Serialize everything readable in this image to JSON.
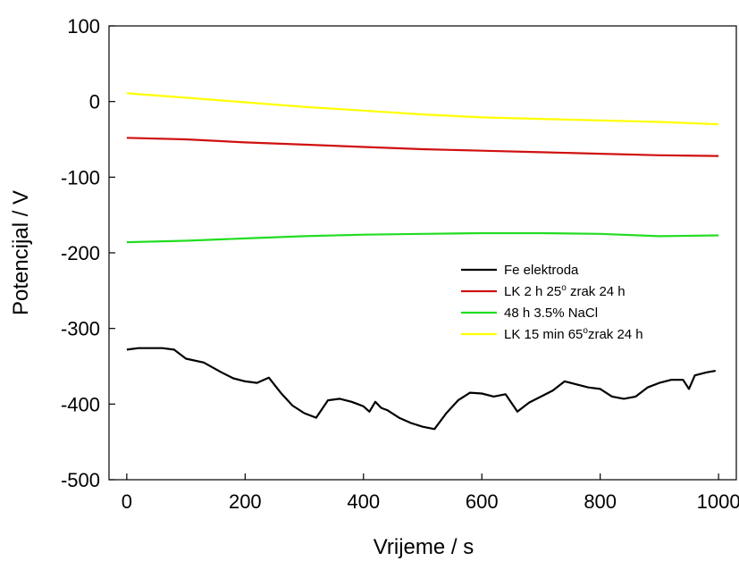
{
  "chart_data": {
    "type": "line",
    "title": "",
    "xlabel": "Vrijeme / s",
    "ylabel": "Potencijal / V",
    "xlim": [
      -30,
      1030
    ],
    "ylim": [
      -500,
      100
    ],
    "xticks": [
      0,
      200,
      400,
      600,
      800,
      1000
    ],
    "yticks": [
      -500,
      -400,
      -300,
      -200,
      -100,
      0,
      100
    ],
    "grid": false,
    "legend_position": "right, middle",
    "series": [
      {
        "name": "Fe elektroda",
        "label_parts": [
          "Fe elektroda"
        ],
        "color": "#000000",
        "x": [
          0,
          20,
          40,
          60,
          80,
          100,
          130,
          160,
          180,
          200,
          220,
          240,
          260,
          280,
          300,
          320,
          340,
          360,
          380,
          390,
          400,
          410,
          420,
          430,
          440,
          460,
          480,
          500,
          520,
          540,
          560,
          580,
          600,
          620,
          640,
          660,
          680,
          700,
          720,
          740,
          760,
          780,
          800,
          820,
          840,
          860,
          880,
          900,
          920,
          940,
          950,
          960,
          980,
          995
        ],
        "y": [
          -328,
          -326,
          -326,
          -326,
          -328,
          -340,
          -345,
          -358,
          -366,
          -370,
          -372,
          -365,
          -385,
          -402,
          -412,
          -418,
          -395,
          -393,
          -397,
          -400,
          -403,
          -410,
          -397,
          -405,
          -408,
          -418,
          -425,
          -430,
          -433,
          -412,
          -395,
          -385,
          -386,
          -390,
          -387,
          -410,
          -398,
          -390,
          -382,
          -370,
          -374,
          -378,
          -380,
          -390,
          -393,
          -390,
          -378,
          -372,
          -368,
          -368,
          -380,
          -362,
          -358,
          -356
        ]
      },
      {
        "name": "LK 2 h 25o zrak 24 h",
        "label_parts": [
          "LK 2 h 25",
          "o",
          " zrak 24 h"
        ],
        "color": "#d01010",
        "x": [
          0,
          100,
          200,
          300,
          400,
          500,
          600,
          700,
          800,
          900,
          1000
        ],
        "y": [
          -48,
          -50,
          -54,
          -57,
          -60,
          -63,
          -65,
          -67,
          -69,
          -71,
          -72
        ]
      },
      {
        "name": "48 h 3.5% NaCl",
        "label_parts": [
          "48 h 3.5% NaCl"
        ],
        "color": "#22dd22",
        "x": [
          0,
          100,
          200,
          300,
          400,
          500,
          600,
          650,
          700,
          800,
          900,
          1000
        ],
        "y": [
          -186,
          -184,
          -181,
          -178,
          -176,
          -175,
          -174,
          -174,
          -174,
          -175,
          -178,
          -177
        ]
      },
      {
        "name": "LK 15 min 65o zrak 24 h",
        "label_parts": [
          "LK 15 min 65",
          "o",
          "zrak 24 h"
        ],
        "color": "#ffff00",
        "x": [
          0,
          100,
          200,
          300,
          400,
          500,
          600,
          700,
          800,
          900,
          1000
        ],
        "y": [
          11,
          5,
          -1,
          -7,
          -12,
          -17,
          -21,
          -23,
          -25,
          -27,
          -30
        ]
      }
    ]
  }
}
